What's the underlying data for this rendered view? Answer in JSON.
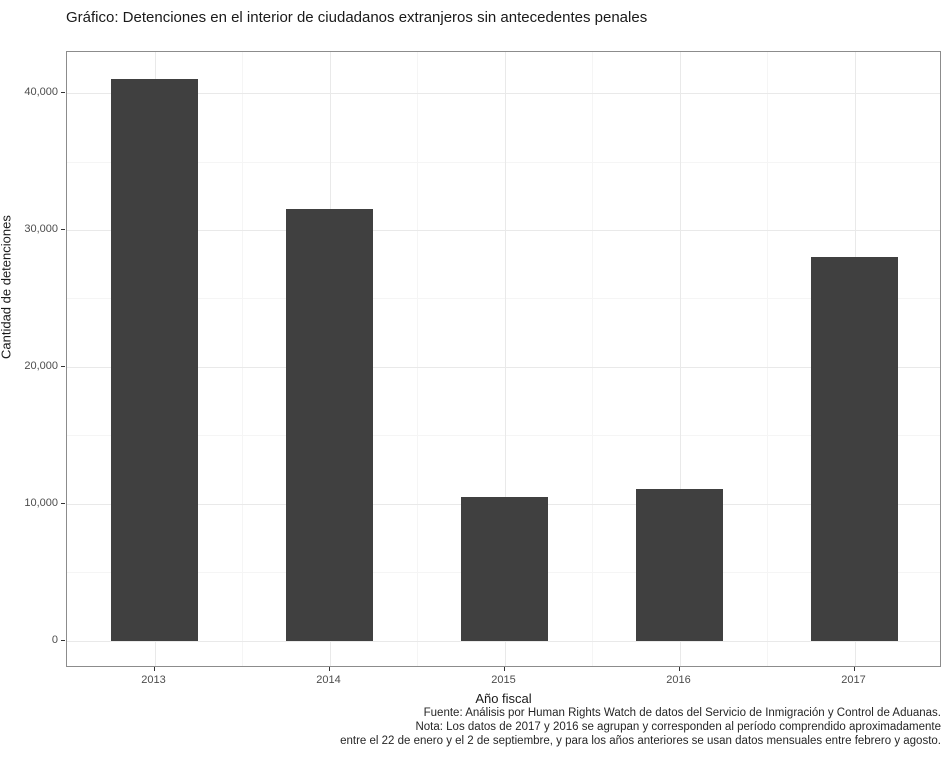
{
  "chart_data": {
    "type": "bar",
    "title": "Gráfico: Detenciones en el interior de ciudadanos extranjeros sin antecedentes penales",
    "categories": [
      "2013",
      "2014",
      "2015",
      "2016",
      "2017"
    ],
    "values": [
      41000,
      31500,
      10500,
      11100,
      28000
    ],
    "xlabel": "Año fiscal",
    "ylabel": "Cantidad de detenciones",
    "ylim": [
      0,
      43000
    ],
    "yticks": {
      "values": [
        0,
        10000,
        20000,
        30000,
        40000
      ],
      "labels": [
        "0",
        "10,000",
        "20,000",
        "30,000",
        "40,000"
      ]
    },
    "minor_yticks": [
      5000,
      15000,
      25000,
      35000
    ],
    "grid": "major and minor gridlines on",
    "legend": "none",
    "bar_width_fraction": 0.5,
    "colors": {
      "bar_fill": "#404040",
      "panel_border": "#8c8c8c",
      "grid_major": "#e9e9e9",
      "grid_minor": "#f5f5f5",
      "tick_label": "#4d4d4d",
      "axis_title": "#1a1a1a"
    }
  },
  "caption": {
    "line1": "Fuente: Análisis por Human Rights Watch de datos del Servicio de Inmigración y Control de Aduanas.",
    "line2": "Nota: Los datos de 2017 y 2016 se agrupan y corresponden al período comprendido aproximadamente",
    "line3": "entre el 22 de enero y el 2 de septiembre, y para los años anteriores se usan datos mensuales entre febrero y agosto."
  }
}
